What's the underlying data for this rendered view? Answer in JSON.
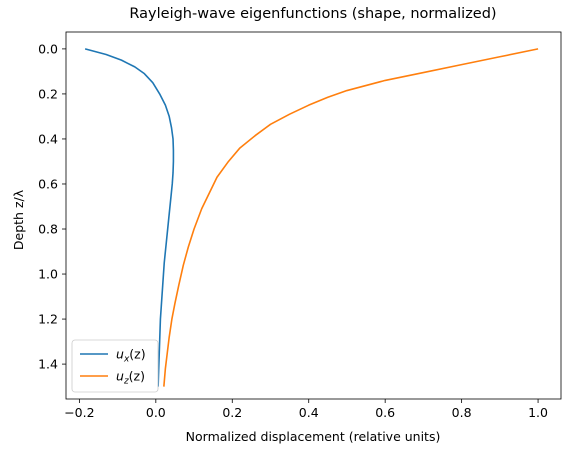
{
  "chart_data": {
    "type": "line",
    "title": "Rayleigh-wave eigenfunctions (shape, normalized)",
    "xlabel": "Normalized displacement (relative units)",
    "ylabel": "Depth z/λ",
    "xlim": [
      -0.235,
      1.06
    ],
    "ylim": [
      1.555,
      -0.075
    ],
    "y_inverted": true,
    "x_ticks": [
      -0.2,
      0.0,
      0.2,
      0.4,
      0.6,
      0.8,
      1.0
    ],
    "x_tick_labels": [
      "−0.2",
      "0.0",
      "0.2",
      "0.4",
      "0.6",
      "0.8",
      "1.0"
    ],
    "y_ticks": [
      0.0,
      0.2,
      0.4,
      0.6,
      0.8,
      1.0,
      1.2,
      1.4
    ],
    "y_tick_labels": [
      "0.0",
      "0.2",
      "0.4",
      "0.6",
      "0.8",
      "1.0",
      "1.2",
      "1.4"
    ],
    "grid": false,
    "legend_position": "bottom-left",
    "series": [
      {
        "name": "u_x(z)",
        "label_base": "u",
        "label_sub": "x",
        "label_arg": "(z)",
        "color": "#1f77b4",
        "points": [
          [
            -0.185,
            0.0
          ],
          [
            -0.13,
            0.025
          ],
          [
            -0.09,
            0.05
          ],
          [
            -0.055,
            0.08
          ],
          [
            -0.03,
            0.11
          ],
          [
            -0.008,
            0.15
          ],
          [
            0.01,
            0.2
          ],
          [
            0.025,
            0.25
          ],
          [
            0.035,
            0.3
          ],
          [
            0.041,
            0.35
          ],
          [
            0.045,
            0.4
          ],
          [
            0.046,
            0.45
          ],
          [
            0.046,
            0.5
          ],
          [
            0.045,
            0.55
          ],
          [
            0.043,
            0.6
          ],
          [
            0.04,
            0.65
          ],
          [
            0.037,
            0.7
          ],
          [
            0.034,
            0.75
          ],
          [
            0.031,
            0.8
          ],
          [
            0.028,
            0.85
          ],
          [
            0.025,
            0.9
          ],
          [
            0.022,
            0.95
          ],
          [
            0.02,
            1.0
          ],
          [
            0.018,
            1.05
          ],
          [
            0.016,
            1.1
          ],
          [
            0.014,
            1.15
          ],
          [
            0.012,
            1.2
          ],
          [
            0.011,
            1.25
          ],
          [
            0.01,
            1.3
          ],
          [
            0.009,
            1.35
          ],
          [
            0.008,
            1.4
          ],
          [
            0.007,
            1.45
          ],
          [
            0.006,
            1.5
          ]
        ]
      },
      {
        "name": "u_z(z)",
        "label_base": "u",
        "label_sub": "z",
        "label_arg": "(z)",
        "color": "#ff7f0e",
        "points": [
          [
            1.0,
            0.0
          ],
          [
            0.9,
            0.035
          ],
          [
            0.8,
            0.07
          ],
          [
            0.7,
            0.105
          ],
          [
            0.6,
            0.14
          ],
          [
            0.5,
            0.185
          ],
          [
            0.45,
            0.215
          ],
          [
            0.4,
            0.25
          ],
          [
            0.35,
            0.29
          ],
          [
            0.3,
            0.335
          ],
          [
            0.26,
            0.385
          ],
          [
            0.22,
            0.44
          ],
          [
            0.19,
            0.5
          ],
          [
            0.16,
            0.57
          ],
          [
            0.14,
            0.64
          ],
          [
            0.12,
            0.71
          ],
          [
            0.1,
            0.8
          ],
          [
            0.085,
            0.88
          ],
          [
            0.072,
            0.96
          ],
          [
            0.06,
            1.05
          ],
          [
            0.05,
            1.13
          ],
          [
            0.042,
            1.2
          ],
          [
            0.035,
            1.28
          ],
          [
            0.03,
            1.35
          ],
          [
            0.025,
            1.42
          ],
          [
            0.021,
            1.5
          ]
        ]
      }
    ]
  }
}
